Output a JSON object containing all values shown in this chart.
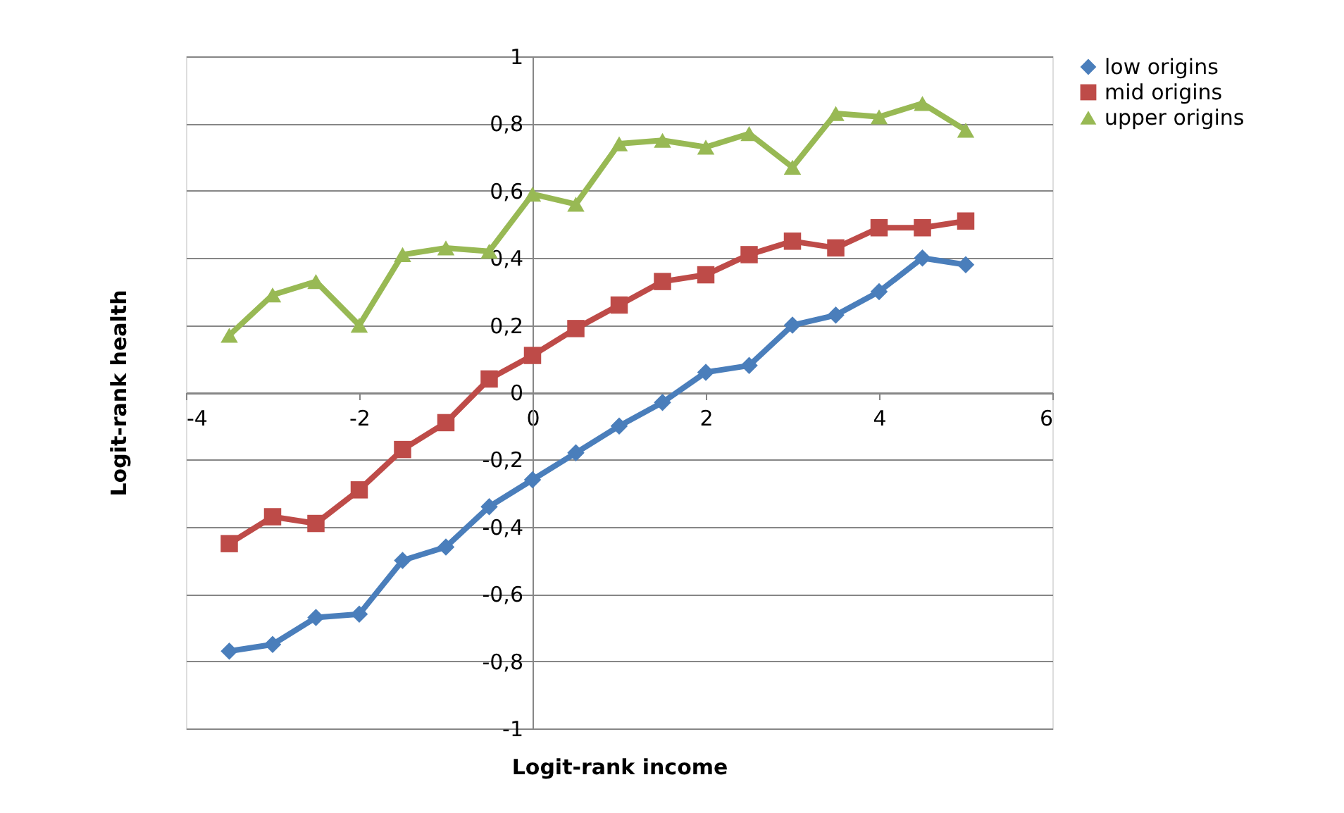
{
  "chart_data": {
    "type": "line",
    "xlabel": "Logit-rank income",
    "ylabel": "Logit-rank health",
    "x": [
      -3.5,
      -3,
      -2.5,
      -2,
      -1.5,
      -1,
      -0.5,
      0,
      0.5,
      1,
      1.5,
      2,
      2.5,
      3,
      3.5,
      4,
      4.5,
      5
    ],
    "series": [
      {
        "name": "low origins",
        "color": "#4a7ebb",
        "marker": "diamond",
        "values": [
          -0.77,
          -0.75,
          -0.67,
          -0.66,
          -0.5,
          -0.46,
          -0.34,
          -0.26,
          -0.18,
          -0.1,
          -0.03,
          0.06,
          0.08,
          0.2,
          0.23,
          0.3,
          0.4,
          0.38
        ]
      },
      {
        "name": "mid origins",
        "color": "#be4b48",
        "marker": "square",
        "values": [
          -0.45,
          -0.37,
          -0.39,
          -0.29,
          -0.17,
          -0.09,
          0.04,
          0.11,
          0.19,
          0.26,
          0.33,
          0.35,
          0.41,
          0.45,
          0.43,
          0.49,
          0.49,
          0.51
        ]
      },
      {
        "name": "upper origins",
        "color": "#98b954",
        "marker": "triangle",
        "values": [
          0.17,
          0.29,
          0.33,
          0.2,
          0.41,
          0.43,
          0.42,
          0.59,
          0.56,
          0.74,
          0.75,
          0.73,
          0.77,
          0.67,
          0.83,
          0.82,
          0.86,
          0.78
        ]
      }
    ],
    "xlim": [
      -4,
      6
    ],
    "xticks": [
      -4,
      -2,
      0,
      2,
      4,
      6
    ],
    "ylim": [
      -1,
      1
    ],
    "yticks": [
      {
        "value": -1,
        "label": "-1"
      },
      {
        "value": -0.8,
        "label": "-0,8"
      },
      {
        "value": -0.6,
        "label": "-0,6"
      },
      {
        "value": -0.4,
        "label": "-0,4"
      },
      {
        "value": -0.2,
        "label": "-0,2"
      },
      {
        "value": 0,
        "label": "0"
      },
      {
        "value": 0.2,
        "label": "0,2"
      },
      {
        "value": 0.4,
        "label": "0,4"
      },
      {
        "value": 0.6,
        "label": "0,6"
      },
      {
        "value": 0.8,
        "label": "0,8"
      },
      {
        "value": 1,
        "label": "1"
      }
    ],
    "grid": "y",
    "legend": "right",
    "line_style": "solid"
  }
}
